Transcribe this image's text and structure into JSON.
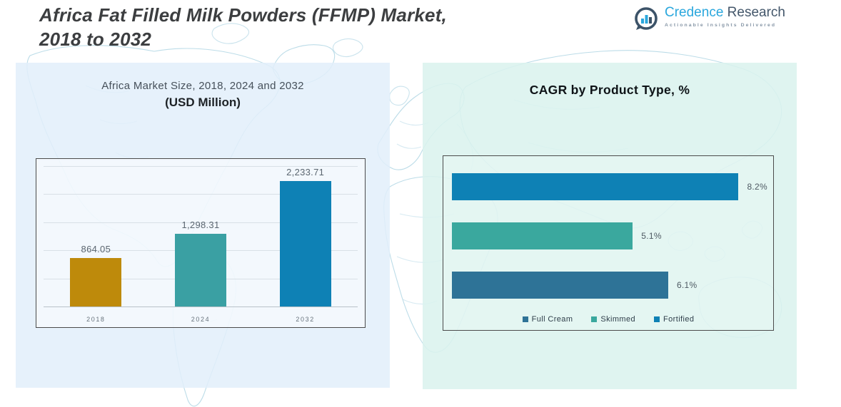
{
  "header": {
    "title_line1": "Africa Fat Filled Milk Powders (FFMP) Market,",
    "title_line2": "2018 to 2032",
    "logo": {
      "brand_primary": "Credence",
      "brand_secondary": " Research",
      "tagline": "Actionable Insights Delivered"
    }
  },
  "colors": {
    "accent_blue": "#0e81b5",
    "accent_teal": "#3aa89e",
    "accent_gold": "#be8a0b",
    "accent_slate": "#2e7397",
    "logo_blue": "#2aa7dd",
    "logo_slate": "#44576b",
    "panel_left_bg": "#e2eefa",
    "panel_right_bg": "#daf2ee",
    "map_line": "#b9dbe7"
  },
  "chart_data": [
    {
      "type": "bar",
      "title": "Africa Market Size, 2018, 2024 and 2032",
      "subtitle": "(USD Million)",
      "categories": [
        "2018",
        "2024",
        "2032"
      ],
      "values": [
        864.05,
        1298.31,
        2233.71
      ],
      "value_labels": [
        "864.05",
        "1,298.31",
        "2,233.71"
      ],
      "bar_colors": [
        "#be8a0b",
        "#3aa0a3",
        "#0e81b5"
      ],
      "xlabel": "",
      "ylabel": "",
      "ylim": [
        0,
        2500
      ],
      "gridline_step": 500,
      "grid": true,
      "legend_position": "none"
    },
    {
      "type": "bar",
      "orientation": "horizontal",
      "title": "CAGR by Product Type, %",
      "series": [
        {
          "name": "Fortified",
          "value": 8.2,
          "label": "8.2%",
          "color": "#0e81b5"
        },
        {
          "name": "Skimmed",
          "value": 5.1,
          "label": "5.1%",
          "color": "#3aa89e"
        },
        {
          "name": "Full Cream",
          "value": 6.1,
          "label": "6.1%",
          "color": "#2e7397"
        }
      ],
      "xlim": [
        0,
        8.9
      ],
      "grid": false,
      "legend_position": "bottom",
      "legend": [
        {
          "name": "Full Cream",
          "color": "#2e7397"
        },
        {
          "name": "Skimmed",
          "color": "#3aa89e"
        },
        {
          "name": "Fortified",
          "color": "#0e81b5"
        }
      ]
    }
  ]
}
